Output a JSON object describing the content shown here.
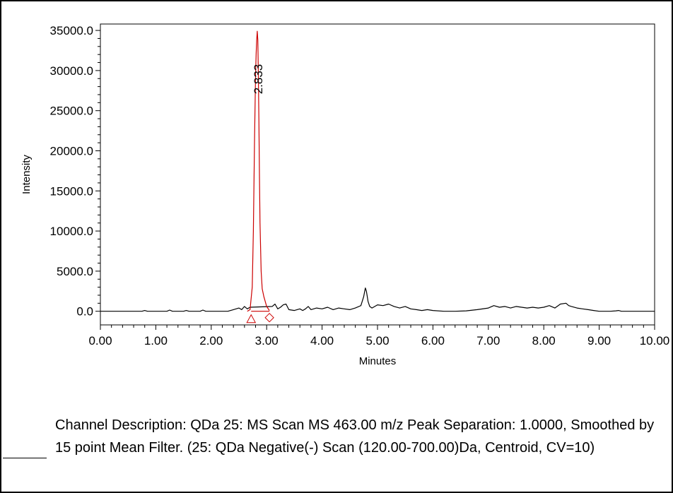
{
  "chart_data": {
    "type": "line",
    "title": "",
    "xlabel": "Minutes",
    "ylabel": "Intensity",
    "xlim": [
      0.0,
      10.0
    ],
    "ylim": [
      -1700,
      35800
    ],
    "x_ticks": [
      "0.00",
      "1.00",
      "2.00",
      "3.00",
      "4.00",
      "5.00",
      "6.00",
      "7.00",
      "8.00",
      "9.00",
      "10.00"
    ],
    "y_ticks": [
      {
        "value": 0,
        "label": "0.0"
      },
      {
        "value": 5000,
        "label": "5000.0"
      },
      {
        "value": 10000,
        "label": "10000.0"
      },
      {
        "value": 15000,
        "label": "15000.0"
      },
      {
        "value": 20000,
        "label": "20000.0"
      },
      {
        "value": 25000,
        "label": "25000.0"
      },
      {
        "value": 30000,
        "label": "30000.0"
      },
      {
        "value": 35000,
        "label": "35000.0"
      }
    ],
    "grid": false,
    "series": [
      {
        "color": "#000000",
        "x": [
          0.0,
          0.75,
          0.8,
          0.85,
          1.2,
          1.25,
          1.3,
          1.5,
          1.55,
          1.6,
          1.8,
          1.85,
          1.9,
          2.0,
          2.3,
          2.4,
          2.5,
          2.55,
          2.6,
          2.65,
          2.7,
          3.1,
          3.15,
          3.2,
          3.25,
          3.3,
          3.35,
          3.4,
          3.5,
          3.6,
          3.65,
          3.7,
          3.75,
          3.8,
          3.9,
          4.0,
          4.1,
          4.2,
          4.3,
          4.4,
          4.5,
          4.6,
          4.7,
          4.75,
          4.78,
          4.8,
          4.83,
          4.86,
          4.9,
          5.0,
          5.1,
          5.2,
          5.3,
          5.4,
          5.5,
          5.6,
          5.7,
          5.8,
          5.9,
          6.0,
          6.2,
          6.4,
          6.6,
          6.8,
          7.0,
          7.1,
          7.2,
          7.3,
          7.4,
          7.5,
          7.6,
          7.7,
          7.8,
          7.9,
          8.0,
          8.1,
          8.2,
          8.3,
          8.4,
          8.45,
          8.5,
          8.6,
          8.7,
          8.8,
          8.9,
          9.0,
          9.2,
          9.3,
          9.35,
          9.4,
          9.6,
          10.0
        ],
        "y": [
          0,
          0,
          100,
          0,
          0,
          150,
          0,
          0,
          100,
          0,
          0,
          150,
          0,
          0,
          0,
          200,
          400,
          200,
          600,
          300,
          500,
          600,
          900,
          300,
          500,
          800,
          900,
          200,
          100,
          300,
          100,
          300,
          600,
          200,
          400,
          300,
          500,
          200,
          400,
          300,
          200,
          400,
          700,
          1800,
          2900,
          2500,
          1200,
          600,
          400,
          800,
          700,
          900,
          600,
          400,
          600,
          300,
          200,
          100,
          200,
          100,
          0,
          0,
          50,
          200,
          400,
          700,
          500,
          600,
          400,
          600,
          500,
          400,
          500,
          400,
          500,
          700,
          400,
          900,
          1000,
          700,
          600,
          400,
          300,
          200,
          100,
          0,
          0,
          50,
          100,
          0,
          0,
          0
        ]
      },
      {
        "color": "#cc0000",
        "x": [
          2.65,
          2.7,
          2.74,
          2.76,
          2.78,
          2.8,
          2.81,
          2.82,
          2.83,
          2.84,
          2.85,
          2.86,
          2.87,
          2.88,
          2.9,
          2.92,
          2.95,
          3.0,
          3.05
        ],
        "y": [
          0,
          200,
          3000,
          10000,
          21000,
          29500,
          32000,
          33800,
          34900,
          33800,
          30000,
          24000,
          17000,
          11000,
          5000,
          2800,
          1800,
          600,
          100
        ]
      }
    ],
    "peak_label": {
      "x": 2.833,
      "text": "2.833"
    },
    "caption": "Channel Description: QDa 25: MS Scan MS 463.00 m/z Peak Separation: 1.0000, Smoothed by 15 point Mean Filter. (25: QDa Negative(-) Scan (120.00-700.00)Da, Centroid, CV=10)"
  },
  "colors": {
    "trace": "#000000",
    "peak": "#cc0000",
    "axis": "#000000"
  }
}
